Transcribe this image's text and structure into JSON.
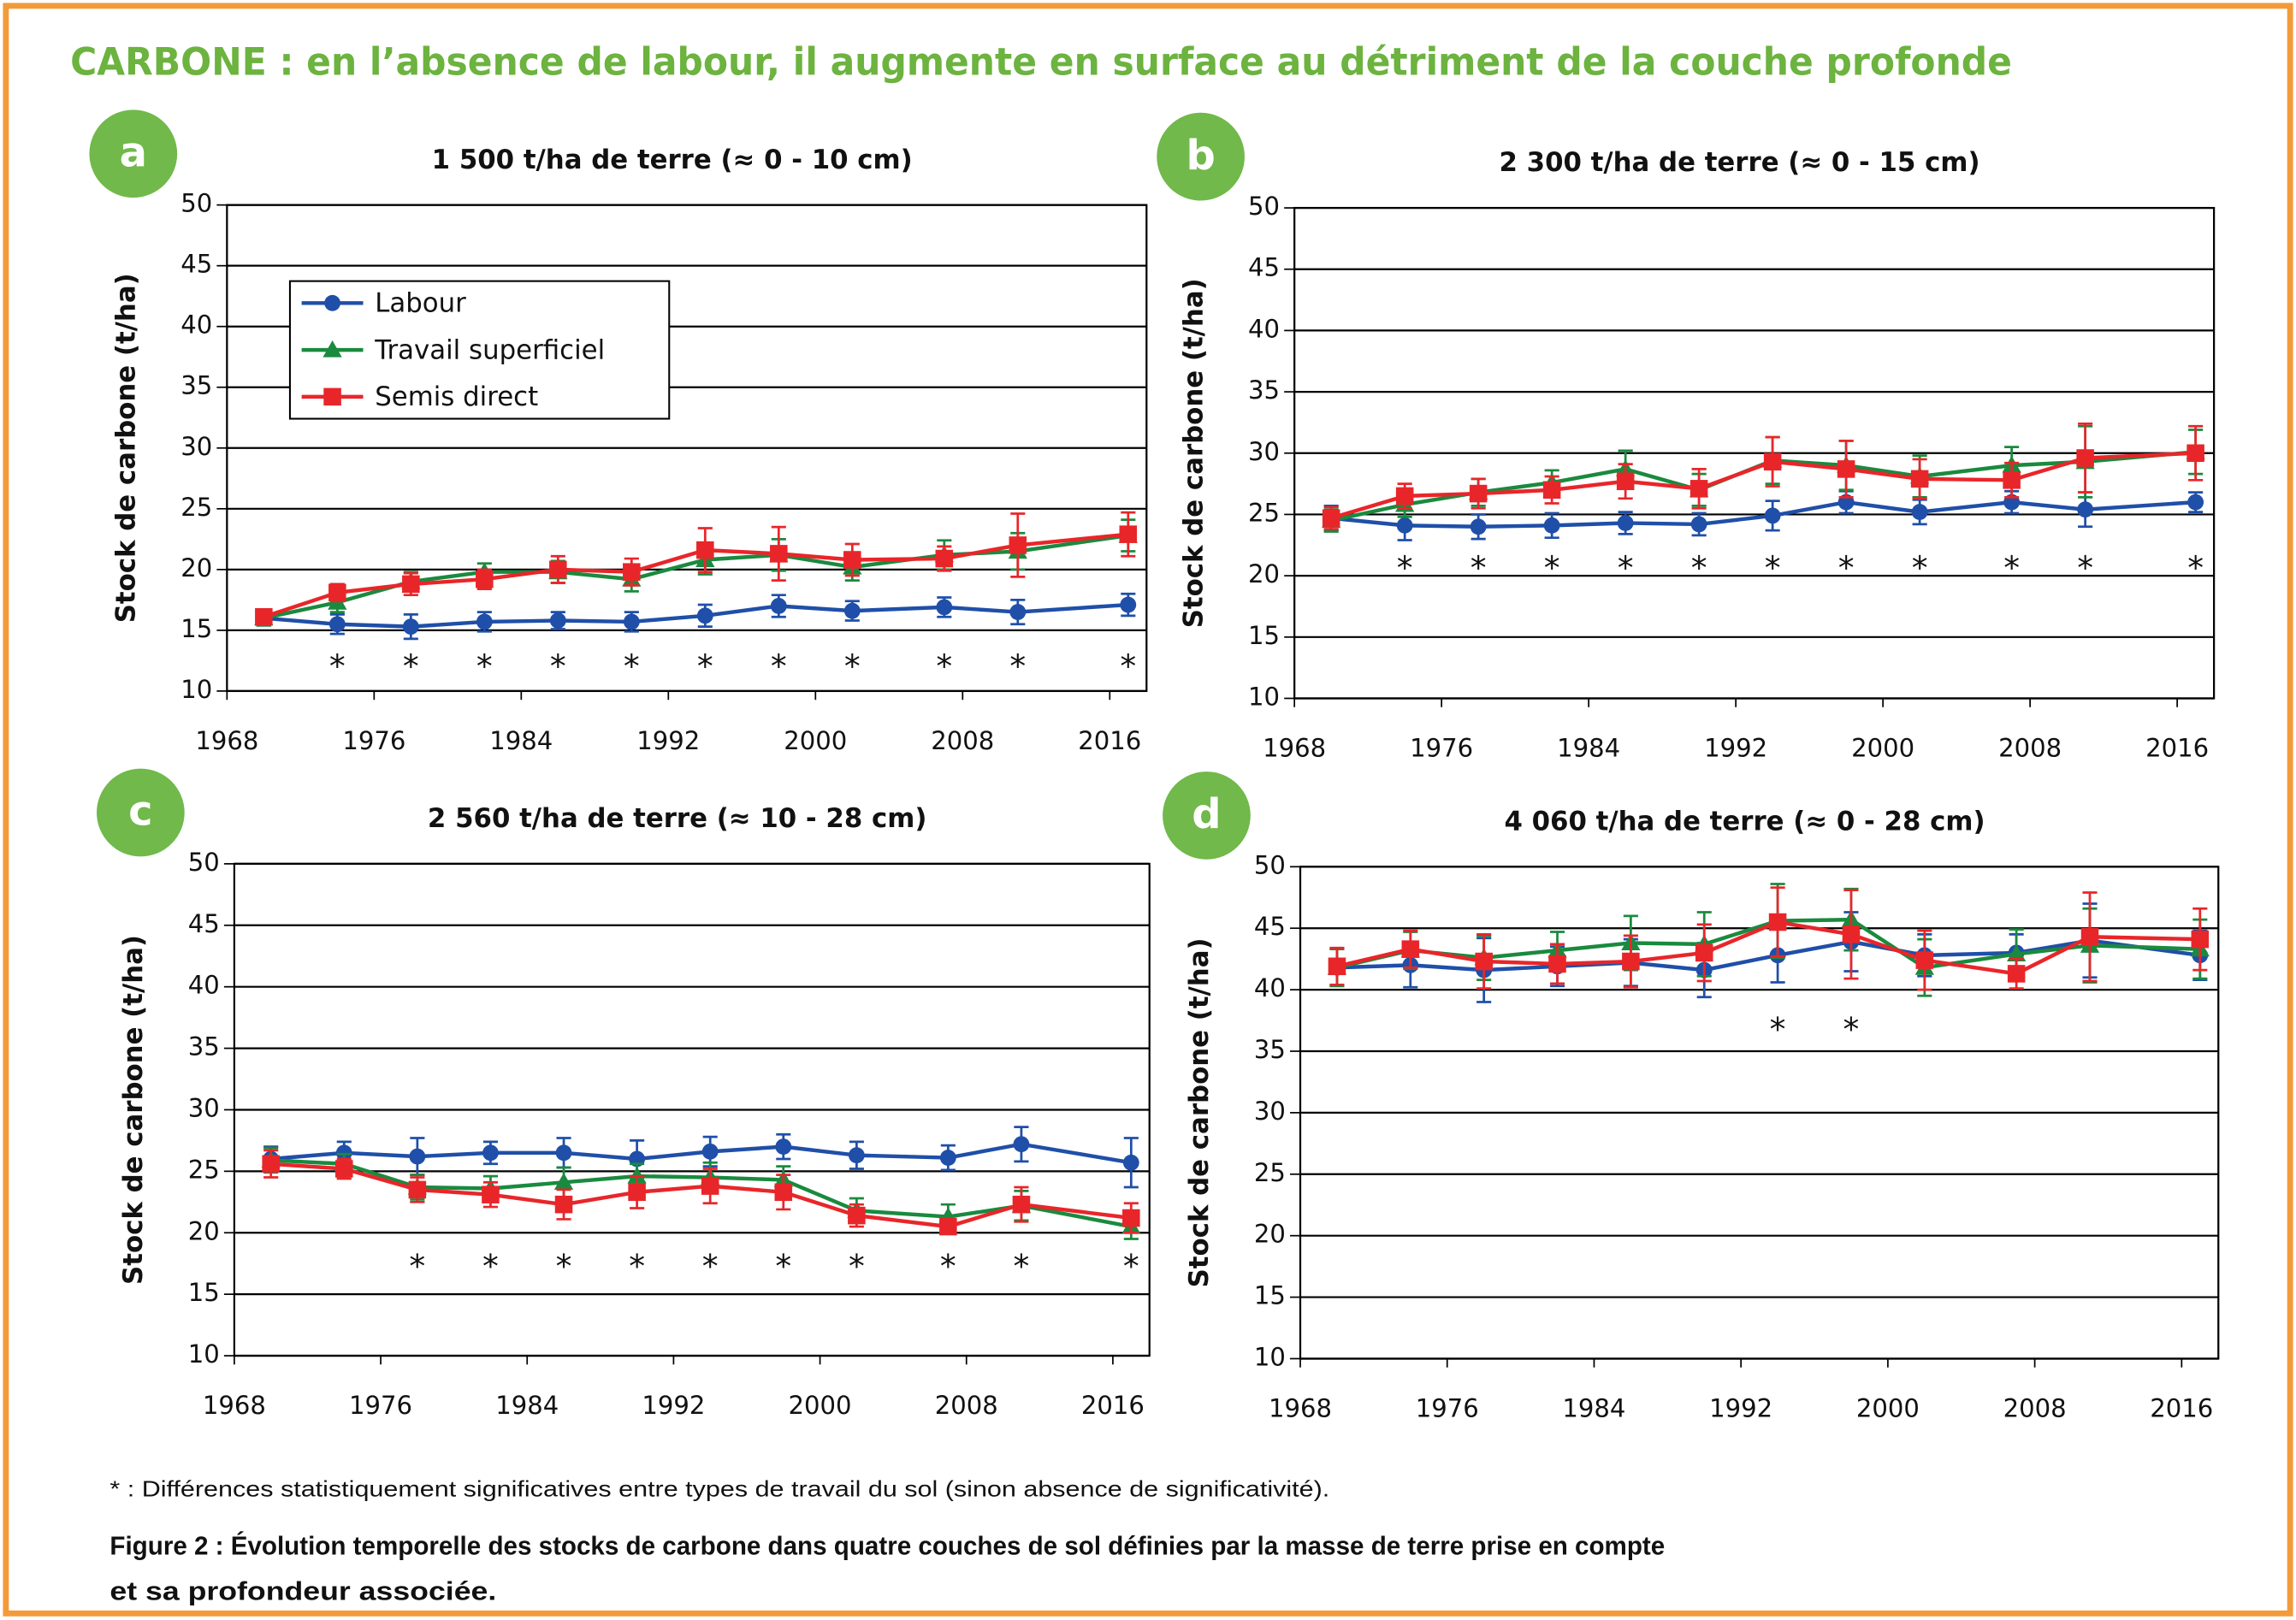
{
  "page": {
    "title": "CARBONE : en l’absence de labour, il augmente en surface au détriment de la couche profonde",
    "footnote": "* : Différences statistiquement significatives entre types de travail du sol (sinon absence de significativité).",
    "caption": [
      "Figure 2  : Évolution temporelle des stocks de carbone dans quatre couches de sol définies par la masse de terre prise en compte",
      "et sa profondeur associée."
    ]
  },
  "chart_data": [
    {
      "type": "line",
      "panel_label": "a",
      "title": "1 500 t/ha de terre (≈ 0 - 10 cm)",
      "ylabel": "Stock de carbone (t/ha)",
      "x": [
        1970,
        1974,
        1978,
        1982,
        1986,
        1990,
        1994,
        1998,
        2002,
        2007,
        2011,
        2017
      ],
      "xlim": [
        1968,
        2018
      ],
      "ylim": [
        10,
        50
      ],
      "xticks": [
        1968,
        1976,
        1984,
        1992,
        2000,
        2008,
        2016
      ],
      "yticks": [
        10,
        15,
        20,
        25,
        30,
        35,
        40,
        45,
        50
      ],
      "grid": true,
      "legend": "upper left",
      "sig_symbol": "*",
      "significant": [
        false,
        true,
        true,
        true,
        true,
        true,
        true,
        true,
        true,
        true,
        true,
        true
      ],
      "series": [
        {
          "name": "Labour",
          "color": "#1f4fa8",
          "marker": "circle",
          "values": [
            16,
            15.5,
            15.3,
            15.7,
            15.8,
            15.7,
            16.2,
            17,
            16.6,
            16.9,
            16.5,
            17.1
          ],
          "errors": [
            0.6,
            0.8,
            1,
            0.8,
            0.7,
            0.8,
            0.9,
            0.9,
            0.8,
            0.8,
            1,
            0.9
          ]
        },
        {
          "name": "Travail superficiel",
          "color": "#1a8a3e",
          "marker": "triangle",
          "values": [
            16,
            17.3,
            19,
            19.8,
            19.8,
            19.2,
            20.8,
            21.2,
            20.2,
            21.2,
            21.5,
            22.8
          ],
          "errors": [
            0.6,
            0.8,
            0.8,
            0.7,
            0.9,
            1,
            1.2,
            1.3,
            1.1,
            1.2,
            1.5,
            1.3
          ]
        },
        {
          "name": "Semis direct",
          "color": "#e8262a",
          "marker": "square",
          "values": [
            16.1,
            18.1,
            18.8,
            19.2,
            20,
            19.8,
            21.6,
            21.3,
            20.8,
            20.9,
            22,
            22.9
          ],
          "errors": [
            0.6,
            0.7,
            0.9,
            0.8,
            1.1,
            1.1,
            1.8,
            2.2,
            1.3,
            1,
            2.6,
            1.8
          ]
        }
      ]
    },
    {
      "type": "line",
      "panel_label": "b",
      "title": "2 300 t/ha de terre (≈ 0 - 15 cm)",
      "ylabel": "Stock de carbone (t/ha)",
      "x": [
        1970,
        1974,
        1978,
        1982,
        1986,
        1990,
        1994,
        1998,
        2002,
        2007,
        2011,
        2017
      ],
      "xlim": [
        1968,
        2018
      ],
      "ylim": [
        10,
        50
      ],
      "xticks": [
        1968,
        1976,
        1984,
        1992,
        2000,
        2008,
        2016
      ],
      "yticks": [
        10,
        15,
        20,
        25,
        30,
        35,
        40,
        45,
        50
      ],
      "grid": true,
      "sig_symbol": "*",
      "significant": [
        false,
        true,
        true,
        true,
        true,
        true,
        true,
        true,
        true,
        true,
        true,
        true
      ],
      "series": [
        {
          "name": "Labour",
          "color": "#1f4fa8",
          "marker": "circle",
          "values": [
            24.7,
            24.1,
            24,
            24.1,
            24.3,
            24.2,
            24.9,
            26,
            25.2,
            26,
            25.4,
            26
          ],
          "errors": [
            1,
            1.2,
            1,
            1,
            0.9,
            0.9,
            1.2,
            0.9,
            1,
            0.9,
            1.4,
            0.8
          ]
        },
        {
          "name": "Travail superficiel",
          "color": "#1a8a3e",
          "marker": "triangle",
          "values": [
            24.5,
            25.8,
            26.8,
            27.6,
            28.7,
            27,
            29.4,
            29,
            28.1,
            29,
            29.3,
            30.1
          ],
          "errors": [
            0.9,
            1,
            1.1,
            1,
            1.5,
            1.3,
            1.9,
            2,
            1.7,
            1.5,
            2.9,
            1.8
          ]
        },
        {
          "name": "Semis direct",
          "color": "#e8262a",
          "marker": "square",
          "values": [
            24.7,
            26.5,
            26.7,
            27,
            27.7,
            27.1,
            29.3,
            28.7,
            27.9,
            27.8,
            29.6,
            30
          ],
          "errors": [
            0.9,
            1,
            1.2,
            1.1,
            1.4,
            1.6,
            2,
            2.3,
            1.6,
            1.4,
            2.8,
            2.2
          ]
        }
      ]
    },
    {
      "type": "line",
      "panel_label": "c",
      "title": "2 560 t/ha de terre (≈ 10 - 28 cm)",
      "ylabel": "Stock de carbone (t/ha)",
      "x": [
        1970,
        1974,
        1978,
        1982,
        1986,
        1990,
        1994,
        1998,
        2002,
        2007,
        2011,
        2017
      ],
      "xlim": [
        1968,
        2018
      ],
      "ylim": [
        10,
        50
      ],
      "xticks": [
        1968,
        1976,
        1984,
        1992,
        2000,
        2008,
        2016
      ],
      "yticks": [
        10,
        15,
        20,
        25,
        30,
        35,
        40,
        45,
        50
      ],
      "grid": true,
      "sig_symbol": "*",
      "significant": [
        false,
        false,
        true,
        true,
        true,
        true,
        true,
        true,
        true,
        true,
        true,
        true
      ],
      "series": [
        {
          "name": "Labour",
          "color": "#1f4fa8",
          "marker": "circle",
          "values": [
            26,
            26.5,
            26.2,
            26.5,
            26.5,
            26,
            26.6,
            27,
            26.3,
            26.1,
            27.2,
            25.7
          ],
          "errors": [
            1,
            0.9,
            1.5,
            0.9,
            1.2,
            1.5,
            1.2,
            1,
            1.1,
            1,
            1.4,
            2
          ]
        },
        {
          "name": "Travail superficiel",
          "color": "#1a8a3e",
          "marker": "triangle",
          "values": [
            25.9,
            25.6,
            23.7,
            23.6,
            24.1,
            24.6,
            24.5,
            24.3,
            21.8,
            21.3,
            22.2,
            20.5
          ],
          "errors": [
            1,
            0.8,
            1,
            1,
            1.2,
            1,
            1.2,
            1.1,
            1,
            1,
            1.2,
            1
          ]
        },
        {
          "name": "Semis direct",
          "color": "#e8262a",
          "marker": "square",
          "values": [
            25.6,
            25.2,
            23.5,
            23.1,
            22.3,
            23.3,
            23.8,
            23.3,
            21.4,
            20.5,
            22.3,
            21.2
          ],
          "errors": [
            1.1,
            0.8,
            1,
            1,
            1.2,
            1.3,
            1.4,
            1.4,
            0.9,
            0.6,
            1.4,
            1.2
          ]
        }
      ]
    },
    {
      "type": "line",
      "panel_label": "d",
      "title": "4 060 t/ha de terre (≈ 0 - 28 cm)",
      "ylabel": "Stock de carbone (t/ha)",
      "x": [
        1970,
        1974,
        1978,
        1982,
        1986,
        1990,
        1994,
        1998,
        2002,
        2007,
        2011,
        2017
      ],
      "xlim": [
        1968,
        2018
      ],
      "ylim": [
        10,
        50
      ],
      "xticks": [
        1968,
        1976,
        1984,
        1992,
        2000,
        2008,
        2016
      ],
      "yticks": [
        10,
        15,
        20,
        25,
        30,
        35,
        40,
        45,
        50
      ],
      "grid": true,
      "sig_symbol": "*",
      "significant": [
        false,
        false,
        false,
        false,
        false,
        false,
        true,
        true,
        false,
        false,
        false,
        false
      ],
      "series": [
        {
          "name": "Labour",
          "color": "#1f4fa8",
          "marker": "circle",
          "values": [
            41.8,
            42,
            41.6,
            41.9,
            42.2,
            41.6,
            42.8,
            43.9,
            42.8,
            43,
            44,
            42.8
          ],
          "errors": [
            1.5,
            1.8,
            2.6,
            1.6,
            1.9,
            2.2,
            2.2,
            2.4,
            1.7,
            1.5,
            3,
            2
          ]
        },
        {
          "name": "Travail superficiel",
          "color": "#1a8a3e",
          "marker": "triangle",
          "values": [
            41.8,
            43.2,
            42.6,
            43.2,
            43.8,
            43.7,
            45.6,
            45.7,
            41.8,
            42.9,
            43.6,
            43.3
          ],
          "errors": [
            1.5,
            1.5,
            1.8,
            1.5,
            2.2,
            2.6,
            3,
            2.5,
            2.3,
            2,
            3,
            2.4
          ]
        },
        {
          "name": "Semis direct",
          "color": "#e8262a",
          "marker": "square",
          "values": [
            41.9,
            43.3,
            42.3,
            42.1,
            42.3,
            43,
            45.5,
            44.5,
            42.4,
            41.3,
            44.3,
            44.1
          ],
          "errors": [
            1.5,
            1.5,
            2.2,
            1.6,
            2.1,
            2.3,
            2.8,
            3.6,
            2.4,
            1.2,
            3.6,
            2.5
          ]
        }
      ]
    }
  ]
}
